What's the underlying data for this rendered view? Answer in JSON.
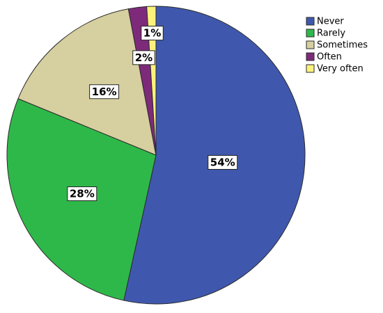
{
  "chart_data": {
    "type": "pie",
    "categories": [
      "Never",
      "Rarely",
      "Sometimes",
      "Often",
      "Very often"
    ],
    "values": [
      54,
      28,
      16,
      2,
      1
    ],
    "data_labels": [
      "54%",
      "28%",
      "16%",
      "2%",
      "1%"
    ],
    "colors": [
      "#3f58ad",
      "#2fb84a",
      "#d6cf9f",
      "#7e2a7a",
      "#fbf27c"
    ],
    "legend": {
      "placement": "top-right",
      "entries": [
        "Never",
        "Rarely",
        "Sometimes",
        "Often",
        "Very often"
      ]
    },
    "start_angle": "12 o'clock",
    "direction": "clockwise"
  }
}
